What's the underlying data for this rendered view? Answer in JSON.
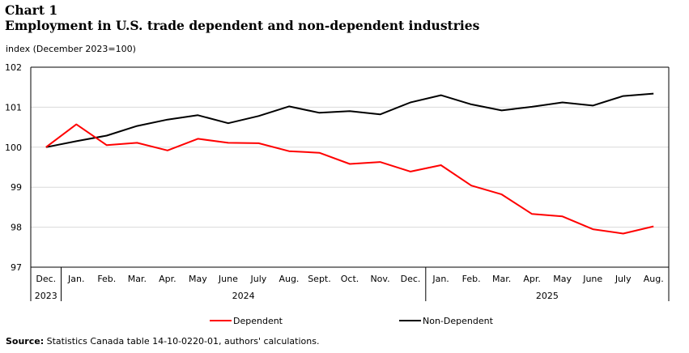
{
  "header": {
    "chart_label": "Chart 1",
    "title": "Employment in U.S. trade dependent and non-dependent industries",
    "units": "index (December 2023=100)"
  },
  "footer": {
    "source_label": "Source:",
    "source_text": " Statistics Canada table 14-10-0220-01, authors' calculations."
  },
  "chart_data": {
    "type": "line",
    "title": "Employment in U.S. trade dependent and non-dependent industries",
    "ylabel": "index (December 2023=100)",
    "xlabel": "",
    "ylim": [
      97,
      102
    ],
    "yticks": [
      97,
      98,
      99,
      100,
      101,
      102
    ],
    "grid": true,
    "legend_position": "bottom",
    "x": [
      "Dec.",
      "Jan.",
      "Feb.",
      "Mar.",
      "Apr.",
      "May",
      "June",
      "July",
      "Aug.",
      "Sept.",
      "Oct.",
      "Nov.",
      "Dec.",
      "Jan.",
      "Feb.",
      "Mar.",
      "Apr.",
      "May",
      "June",
      "July",
      "Aug."
    ],
    "year_groups": [
      {
        "label": "2023",
        "start": 0,
        "end": 0
      },
      {
        "label": "2024",
        "start": 1,
        "end": 12
      },
      {
        "label": "2025",
        "start": 13,
        "end": 20
      }
    ],
    "series": [
      {
        "name": "Dependent",
        "color": "#ff0000",
        "values": [
          100.0,
          100.57,
          100.05,
          100.11,
          99.92,
          100.21,
          100.11,
          100.1,
          99.9,
          99.86,
          99.58,
          99.63,
          99.39,
          99.55,
          99.04,
          98.82,
          98.33,
          98.27,
          97.95,
          97.84,
          98.02
        ]
      },
      {
        "name": "Non-Dependent",
        "color": "#000000",
        "values": [
          100.0,
          100.15,
          100.29,
          100.53,
          100.69,
          100.8,
          100.6,
          100.78,
          101.02,
          100.86,
          100.9,
          100.82,
          101.12,
          101.3,
          101.07,
          100.92,
          101.01,
          101.12,
          101.04,
          101.28,
          101.34
        ]
      }
    ]
  }
}
